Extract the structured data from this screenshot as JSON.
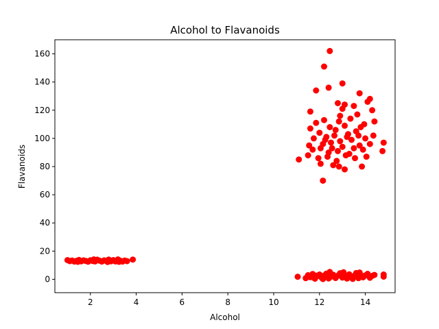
{
  "chart_data": {
    "type": "scatter",
    "title": "Alcohol to Flavanoids",
    "xlabel": "Alcohol",
    "ylabel": "Flavanoids",
    "xlim": [
      0.45,
      15.3
    ],
    "ylim": [
      -9.5,
      170
    ],
    "xticks": [
      2,
      4,
      6,
      8,
      10,
      12,
      14
    ],
    "yticks": [
      0,
      20,
      40,
      60,
      80,
      100,
      120,
      140,
      160
    ],
    "grid": false,
    "legend": "none",
    "marker_color": "#ff0000",
    "series": [
      {
        "points": [
          [
            1.0,
            13.6
          ],
          [
            1.1,
            12.9
          ],
          [
            1.2,
            13.3
          ],
          [
            1.3,
            12.6
          ],
          [
            1.4,
            13.1
          ],
          [
            1.5,
            13.7
          ],
          [
            1.6,
            12.8
          ],
          [
            1.7,
            13.4
          ],
          [
            1.8,
            13.0
          ],
          [
            1.9,
            12.5
          ],
          [
            2.0,
            13.5
          ],
          [
            2.1,
            13.0
          ],
          [
            2.2,
            12.7
          ],
          [
            2.3,
            13.9
          ],
          [
            2.4,
            13.2
          ],
          [
            2.5,
            12.6
          ],
          [
            2.6,
            13.4
          ],
          [
            2.7,
            13.0
          ],
          [
            2.8,
            14.0
          ],
          [
            2.9,
            12.8
          ],
          [
            3.0,
            13.6
          ],
          [
            3.1,
            12.7
          ],
          [
            3.2,
            14.1
          ],
          [
            3.3,
            13.2
          ],
          [
            3.4,
            12.6
          ],
          [
            3.5,
            13.3
          ],
          [
            3.6,
            12.9
          ],
          [
            3.85,
            14.0
          ],
          [
            1.45,
            12.4
          ],
          [
            2.15,
            14.1
          ],
          [
            2.75,
            12.3
          ],
          [
            3.25,
            12.4
          ],
          [
            11.05,
            1.8
          ],
          [
            11.4,
            0.8
          ],
          [
            11.5,
            2.9
          ],
          [
            11.6,
            1.5
          ],
          [
            11.7,
            3.8
          ],
          [
            11.8,
            0.4
          ],
          [
            11.9,
            2.2
          ],
          [
            12.0,
            3.4
          ],
          [
            12.1,
            1.0
          ],
          [
            12.2,
            2.6
          ],
          [
            12.3,
            4.0
          ],
          [
            12.4,
            0.6
          ],
          [
            12.5,
            1.9
          ],
          [
            12.6,
            3.2
          ],
          [
            12.7,
            0.9
          ],
          [
            12.8,
            2.5
          ],
          [
            12.9,
            4.3
          ],
          [
            13.0,
            1.2
          ],
          [
            13.1,
            2.8
          ],
          [
            13.2,
            0.5
          ],
          [
            13.3,
            3.5
          ],
          [
            13.4,
            1.6
          ],
          [
            13.5,
            2.3
          ],
          [
            13.6,
            4.4
          ],
          [
            13.7,
            0.8
          ],
          [
            13.8,
            3.0
          ],
          [
            13.9,
            1.4
          ],
          [
            14.0,
            2.7
          ],
          [
            14.1,
            3.9
          ],
          [
            14.2,
            1.1
          ],
          [
            14.3,
            2.4
          ],
          [
            14.4,
            3.1
          ],
          [
            14.8,
            1.9
          ],
          [
            14.8,
            3.4
          ],
          [
            12.45,
            5.2
          ],
          [
            13.05,
            5.0
          ],
          [
            13.75,
            4.8
          ],
          [
            12.15,
            0.2
          ],
          [
            13.45,
            0.3
          ],
          [
            11.85,
            2.6
          ],
          [
            12.45,
            162
          ],
          [
            12.2,
            151
          ],
          [
            12.4,
            136
          ],
          [
            11.85,
            134
          ],
          [
            13.0,
            139
          ],
          [
            13.75,
            132
          ],
          [
            12.8,
            125
          ],
          [
            13.1,
            124
          ],
          [
            13.5,
            123
          ],
          [
            14.2,
            128
          ],
          [
            14.1,
            126
          ],
          [
            11.6,
            119
          ],
          [
            14.3,
            120
          ],
          [
            13.0,
            121
          ],
          [
            12.9,
            116
          ],
          [
            13.65,
            117
          ],
          [
            12.2,
            113
          ],
          [
            11.85,
            111
          ],
          [
            12.85,
            112
          ],
          [
            13.35,
            114
          ],
          [
            14.4,
            112
          ],
          [
            11.6,
            107
          ],
          [
            12.45,
            108
          ],
          [
            13.1,
            109
          ],
          [
            13.95,
            110
          ],
          [
            12.0,
            104
          ],
          [
            12.7,
            106
          ],
          [
            13.25,
            103
          ],
          [
            13.6,
            105
          ],
          [
            14.35,
            102
          ],
          [
            11.75,
            100
          ],
          [
            12.3,
            101
          ],
          [
            12.9,
            98
          ],
          [
            13.4,
            99
          ],
          [
            14.0,
            100
          ],
          [
            14.8,
            97
          ],
          [
            11.55,
            95
          ],
          [
            12.15,
            96
          ],
          [
            12.55,
            93
          ],
          [
            13.0,
            94
          ],
          [
            13.75,
            95
          ],
          [
            14.2,
            96
          ],
          [
            11.7,
            92
          ],
          [
            12.4,
            90
          ],
          [
            12.8,
            91
          ],
          [
            13.3,
            89
          ],
          [
            13.9,
            92
          ],
          [
            14.75,
            91
          ],
          [
            11.1,
            85
          ],
          [
            11.5,
            88
          ],
          [
            11.95,
            86
          ],
          [
            12.35,
            87
          ],
          [
            12.75,
            84
          ],
          [
            13.15,
            88
          ],
          [
            13.55,
            86
          ],
          [
            14.05,
            87
          ],
          [
            12.05,
            82
          ],
          [
            12.6,
            81
          ],
          [
            12.85,
            80
          ],
          [
            13.1,
            78
          ],
          [
            13.85,
            80
          ],
          [
            12.15,
            70
          ],
          [
            12.5,
            97
          ],
          [
            13.2,
            101
          ],
          [
            13.7,
            102
          ],
          [
            12.05,
            93
          ],
          [
            13.5,
            93
          ],
          [
            12.25,
            99
          ],
          [
            13.8,
            108
          ],
          [
            12.65,
            102
          ]
        ]
      }
    ]
  }
}
